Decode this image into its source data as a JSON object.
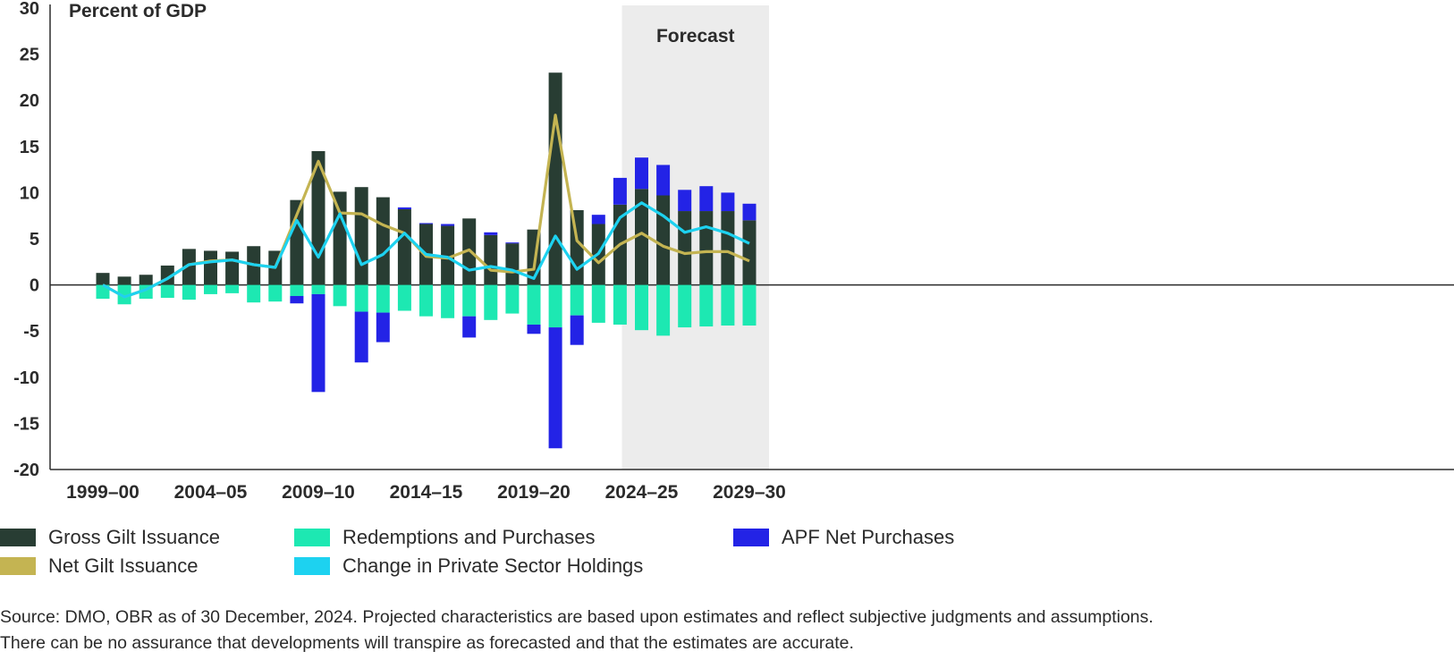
{
  "chart_data": {
    "type": "bar",
    "ylabel": "Percent of GDP",
    "ylim": [
      -20,
      30
    ],
    "yticks": [
      30,
      25,
      20,
      15,
      10,
      5,
      0,
      -5,
      -10,
      -15,
      -20
    ],
    "x_tick_labels": [
      "1999-00",
      "2004-05",
      "2009-10",
      "2014-15",
      "2019-20",
      "2024-25",
      "2029-30"
    ],
    "x_tick_positions": [
      0,
      5,
      10,
      15,
      20,
      25,
      30
    ],
    "forecast_label": "Forecast",
    "forecast_range": [
      25,
      30
    ],
    "categories": [
      "1999-00",
      "2000-01",
      "2001-02",
      "2002-03",
      "2003-04",
      "2004-05",
      "2005-06",
      "2006-07",
      "2007-08",
      "2008-09",
      "2009-10",
      "2010-11",
      "2011-12",
      "2012-13",
      "2013-14",
      "2014-15",
      "2015-16",
      "2016-17",
      "2017-18",
      "2018-19",
      "2019-20",
      "2020-21",
      "2021-22",
      "2022-23",
      "2023-24",
      "2024-25",
      "2025-26",
      "2026-27",
      "2027-28",
      "2028-29",
      "2029-30"
    ],
    "series": [
      {
        "name": "Gross Gilt Issuance",
        "type": "bar",
        "color": "#283d33",
        "values": [
          1.3,
          0.9,
          1.1,
          2.1,
          3.9,
          3.7,
          3.6,
          4.2,
          3.7,
          9.2,
          14.5,
          10.1,
          10.6,
          9.5,
          8.2,
          6.6,
          6.4,
          7.2,
          5.4,
          4.5,
          6.0,
          23.0,
          8.1,
          6.6,
          8.7,
          10.4,
          9.7,
          8.0,
          8.0,
          8.0,
          7.0
        ]
      },
      {
        "name": "APF Net Purchases (positive)",
        "type": "bar",
        "color": "#2323e6",
        "values": [
          0,
          0,
          0,
          0,
          0,
          0,
          0,
          0,
          0,
          0,
          0,
          0,
          0,
          0,
          0.2,
          0.1,
          0.2,
          0,
          0.3,
          0.1,
          0,
          0,
          0,
          1.0,
          2.9,
          3.4,
          3.3,
          2.3,
          2.7,
          2.0,
          1.8
        ]
      },
      {
        "name": "Redemptions and Purchases",
        "type": "bar",
        "color": "#1de8b2",
        "values": [
          -1.5,
          -2.1,
          -1.5,
          -1.4,
          -1.6,
          -1.0,
          -0.9,
          -1.9,
          -1.8,
          -1.2,
          -1.0,
          -2.3,
          -2.9,
          -3.0,
          -2.8,
          -3.4,
          -3.6,
          -3.4,
          -3.8,
          -3.1,
          -4.3,
          -4.6,
          -3.3,
          -4.1,
          -4.3,
          -4.9,
          -5.5,
          -4.6,
          -4.5,
          -4.4,
          -4.4
        ]
      },
      {
        "name": "APF Net Purchases (negative)",
        "type": "bar",
        "color": "#2323e6",
        "values": [
          0,
          0,
          0,
          0,
          0,
          0,
          0,
          0,
          0,
          -0.8,
          -10.6,
          0,
          -5.5,
          -3.2,
          0,
          0,
          0,
          -2.3,
          0,
          0,
          -1.0,
          -13.1,
          -3.2,
          0,
          0,
          0,
          0,
          0,
          0,
          0,
          0
        ]
      },
      {
        "name": "Net Gilt Issuance",
        "type": "line",
        "color": "#c4b452",
        "values": [
          0,
          -1.3,
          -0.5,
          0.7,
          2.2,
          2.6,
          2.7,
          2.2,
          1.9,
          7.6,
          13.4,
          7.8,
          7.7,
          6.5,
          5.6,
          3.1,
          2.9,
          3.8,
          1.6,
          1.4,
          1.7,
          18.4,
          4.8,
          2.4,
          4.4,
          5.6,
          4.2,
          3.4,
          3.6,
          3.6,
          2.6
        ]
      },
      {
        "name": "Change in Private Sector Holdings",
        "type": "line",
        "color": "#1dd2f0",
        "values": [
          0,
          -1.3,
          -0.5,
          0.7,
          2.2,
          2.5,
          2.7,
          2.2,
          1.9,
          7.0,
          3.0,
          7.7,
          2.2,
          3.3,
          5.6,
          3.3,
          3.0,
          1.6,
          2.0,
          1.6,
          0.7,
          5.3,
          1.7,
          3.4,
          7.3,
          8.9,
          7.5,
          5.7,
          6.3,
          5.6,
          4.5
        ]
      }
    ],
    "legend": [
      {
        "label": "Gross Gilt Issuance",
        "color": "#283d33"
      },
      {
        "label": "Net Gilt Issuance",
        "color": "#c4b452"
      },
      {
        "label": "Redemptions and Purchases",
        "color": "#1de8b2"
      },
      {
        "label": "Change in Private Sector Holdings",
        "color": "#1dd2f0"
      },
      {
        "label": "APF Net Purchases",
        "color": "#2323e6"
      }
    ]
  },
  "source": {
    "line1": "Source: DMO, OBR as of 30 December, 2024. Projected characteristics are based upon estimates and reflect subjective judgments and assumptions.",
    "line2": "There can be no assurance that developments will transpire as forecasted and that the estimates are accurate."
  }
}
